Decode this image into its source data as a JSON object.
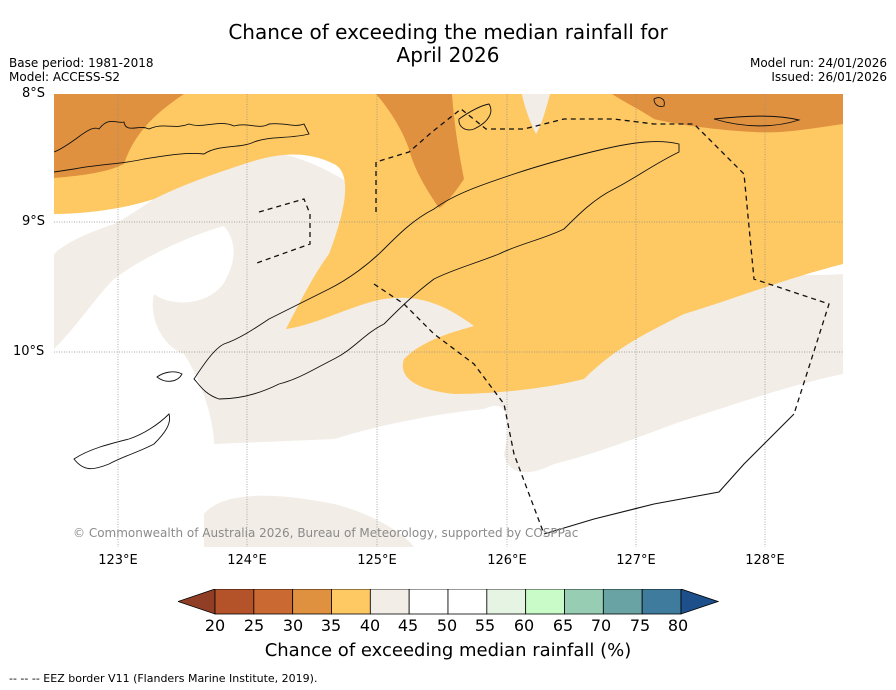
{
  "title": {
    "line1": "Chance of exceeding the median rainfall for",
    "line2": "April 2026"
  },
  "meta": {
    "base_period": "Base period: 1981-2018",
    "model": "Model: ACCESS-S2",
    "model_run": "Model run: 24/01/2026",
    "issued": "Issued: 26/01/2026"
  },
  "map": {
    "lat_labels": [
      "8°S",
      "9°S",
      "10°S"
    ],
    "lon_labels": [
      "123°E",
      "124°E",
      "125°E",
      "126°E",
      "127°E",
      "128°E"
    ],
    "copyright": "© Commonwealth of Australia 2026, Bureau of Meteorology, supported by COSPPac"
  },
  "colorbar": {
    "ticks": [
      "20",
      "25",
      "30",
      "35",
      "40",
      "45",
      "50",
      "55",
      "60",
      "65",
      "70",
      "75",
      "80"
    ],
    "colors": [
      "#b4532a",
      "#ca6a32",
      "#e0913f",
      "#fec862",
      "#f2ede6",
      "#ffffff",
      "#ffffff",
      "#e6f4e4",
      "#c9fbc8",
      "#97ceb3",
      "#6aa3a4",
      "#3e7b9c"
    ],
    "low_extend_color": "#913e26",
    "high_extend_color": "#1d4f8a",
    "title": "Chance of exceeding median rainfall (%)"
  },
  "footnote": "--  --  -- EEZ border V11 (Flanders Marine Institute, 2019)."
}
